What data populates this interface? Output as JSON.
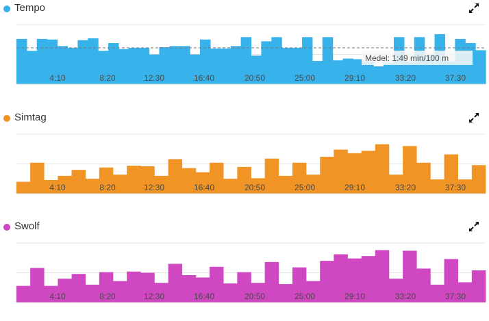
{
  "charts": [
    {
      "title": "Tempo",
      "color": "#38b2ea",
      "expand_icon": "expand-arrows-icon",
      "avg_label": "Medel:",
      "avg_value": "1:49 min/100 m"
    },
    {
      "title": "Simtag",
      "color": "#ef9425",
      "expand_icon": "expand-arrows-icon"
    },
    {
      "title": "Swolf",
      "color": "#cf48c2",
      "expand_icon": "expand-arrows-icon"
    }
  ],
  "chart_data": [
    {
      "type": "area",
      "title": "Tempo",
      "x_ticks": [
        "4:10",
        "8:20",
        "12:30",
        "16:40",
        "20:50",
        "25:00",
        "29:10",
        "33:20",
        "37:30"
      ],
      "grid": true,
      "series": [
        {
          "name": "Tempo",
          "values": [
            0.76,
            0.56,
            0.76,
            0.75,
            0.64,
            0.61,
            0.74,
            0.77,
            0.56,
            0.69,
            0.59,
            0.61,
            0.61,
            0.5,
            0.62,
            0.64,
            0.64,
            0.5,
            0.75,
            0.6,
            0.6,
            0.64,
            0.79,
            0.48,
            0.72,
            0.79,
            0.61,
            0.61,
            0.79,
            0.39,
            0.79,
            0.4,
            0.43,
            0.42,
            0.38,
            0.3,
            0.36,
            0.79,
            0.38,
            0.79,
            0.49,
            0.84,
            0.38,
            0.76,
            0.69,
            0.57
          ]
        }
      ],
      "reference_line": "average"
    },
    {
      "type": "bar",
      "title": "Simtag",
      "x_ticks": [
        "4:10",
        "8:20",
        "12:30",
        "16:40",
        "20:50",
        "25:00",
        "29:10",
        "33:20",
        "37:30"
      ],
      "grid": true,
      "series": [
        {
          "name": "Simtag",
          "values": [
            0.2,
            0.52,
            0.23,
            0.3,
            0.4,
            0.25,
            0.44,
            0.32,
            0.47,
            0.46,
            0.3,
            0.58,
            0.43,
            0.36,
            0.52,
            0.25,
            0.45,
            0.26,
            0.59,
            0.3,
            0.52,
            0.32,
            0.62,
            0.74,
            0.68,
            0.72,
            0.83,
            0.32,
            0.8,
            0.52,
            0.24,
            0.66,
            0.24,
            0.48
          ]
        }
      ]
    },
    {
      "type": "bar",
      "title": "Swolf",
      "x_ticks": [
        "4:10",
        "8:20",
        "12:30",
        "16:40",
        "20:50",
        "25:00",
        "29:10",
        "33:20",
        "37:30"
      ],
      "grid": true,
      "series": [
        {
          "name": "Swolf",
          "values": [
            0.28,
            0.58,
            0.28,
            0.4,
            0.48,
            0.3,
            0.51,
            0.36,
            0.52,
            0.5,
            0.33,
            0.65,
            0.46,
            0.42,
            0.6,
            0.32,
            0.51,
            0.33,
            0.68,
            0.31,
            0.59,
            0.36,
            0.7,
            0.81,
            0.74,
            0.78,
            0.88,
            0.4,
            0.87,
            0.57,
            0.3,
            0.73,
            0.34,
            0.54
          ]
        }
      ]
    }
  ]
}
